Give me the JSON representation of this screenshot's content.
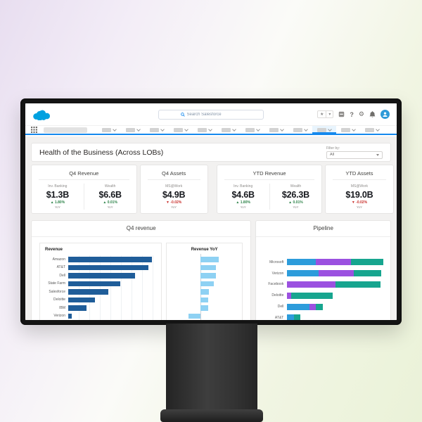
{
  "topbar": {
    "search_placeholder": "Search Salesforce",
    "right_icons": [
      "favorites-star",
      "favorites-dropdown",
      "apps-box",
      "help",
      "setup-gear",
      "notifications-bell",
      "user-avatar"
    ]
  },
  "navbar": {
    "tab_count": 12,
    "selected_tab_index": 9
  },
  "page": {
    "title": "Health of the Business (Across LOBs)",
    "filter_label": "Filter by:",
    "filter_value": "All"
  },
  "glyphs": {
    "up": "▲",
    "down": "▼",
    "star": "★",
    "dropdown": "▾",
    "gear": "⚙"
  },
  "kpi_cards": [
    {
      "title": "Q4 Revenue",
      "metrics": [
        {
          "label": "Inv. Banking",
          "value": "$1.3B",
          "delta": "1.80%",
          "direction": "up",
          "period": "YoY"
        },
        {
          "label": "Wealth",
          "value": "$6.6B",
          "delta": "0.01%",
          "direction": "up",
          "period": "YoY"
        }
      ]
    },
    {
      "title": "Q4 Assets",
      "metrics": [
        {
          "label": "MS@Work",
          "value": "$4.9B",
          "delta": "-0.02%",
          "direction": "down",
          "period": "YoY"
        }
      ]
    },
    {
      "title": "YTD Revenue",
      "metrics": [
        {
          "label": "Inv. Banking",
          "value": "$4.6B",
          "delta": "1.80%",
          "direction": "up",
          "period": "YoY"
        },
        {
          "label": "Wealth",
          "value": "$26.3B",
          "delta": "0.01%",
          "direction": "up",
          "period": "YoY"
        }
      ]
    },
    {
      "title": "YTD Assets",
      "metrics": [
        {
          "label": "MS@Work",
          "value": "$19.0B",
          "delta": "-0.02%",
          "direction": "down",
          "period": "YoY"
        }
      ]
    }
  ],
  "chart_data": [
    {
      "id": "q4-revenue-bars",
      "type": "bar",
      "orientation": "horizontal",
      "card_title": "Q4 revenue",
      "title": "Revenue",
      "categories": [
        "Amazon",
        "AT&T",
        "Dell",
        "State Farm",
        "Salesforce",
        "Deloitte",
        "IBM",
        "Verizon"
      ],
      "values": [
        100,
        96,
        80,
        62,
        48,
        32,
        22,
        4
      ],
      "unit": "% of longest bar (no numeric axis labels visible)",
      "bar_color": "#1f5d99",
      "grid": true,
      "legend": "none"
    },
    {
      "id": "q4-revenue-yoy",
      "type": "bar",
      "orientation": "horizontal",
      "title": "Revenue YoY",
      "categories": [
        "Amazon",
        "AT&T",
        "Dell",
        "State Farm",
        "Salesforce",
        "Deloitte",
        "IBM",
        "Verizon"
      ],
      "values": [
        27,
        23,
        23,
        20,
        13,
        12,
        12,
        -17
      ],
      "unit": "% of panel width from zero axis (no numeric axis labels visible)",
      "axis_position_pct": 44,
      "bar_color": "#8ed1f3",
      "grid": false,
      "legend": "none"
    },
    {
      "id": "pipeline",
      "type": "bar",
      "stacked": true,
      "orientation": "horizontal",
      "card_title": "Pipeline",
      "categories": [
        "Microsoft",
        "Verizon",
        "Facebook",
        "Deloitte",
        "Dell",
        "AT&T"
      ],
      "series": [
        {
          "name": "segment-1",
          "color": "#2d9cdb",
          "values": [
            30,
            33,
            0,
            0,
            23,
            7
          ]
        },
        {
          "name": "segment-2",
          "color": "#9b51e0",
          "values": [
            36,
            36,
            50,
            4,
            7,
            0
          ]
        },
        {
          "name": "segment-3",
          "color": "#17a58f",
          "values": [
            34,
            29,
            47,
            43,
            7,
            7
          ]
        }
      ],
      "unit": "% of track width (no numeric axis labels visible)",
      "legend": "none"
    }
  ]
}
